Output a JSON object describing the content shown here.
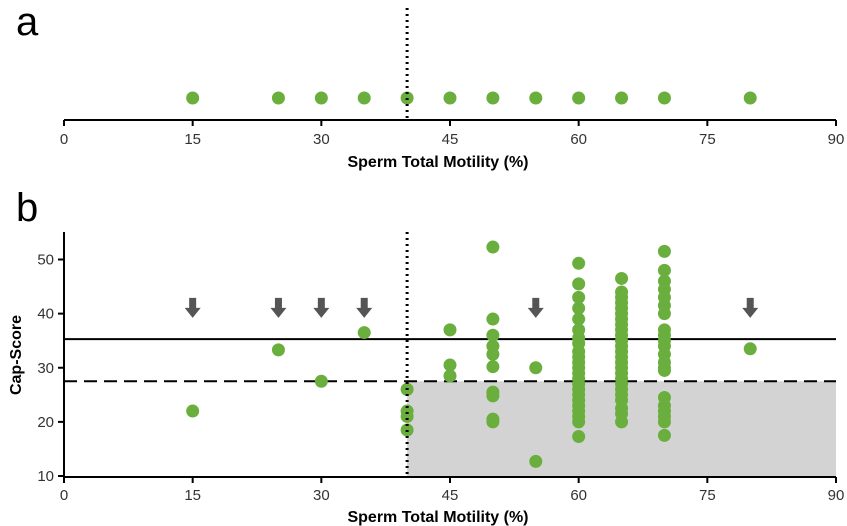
{
  "chart_data": [
    {
      "type": "scatter",
      "panel_label": "a",
      "xlabel": "Sperm Total Motility (%)",
      "ylabel": "",
      "xlim": [
        0,
        90
      ],
      "xticks": [
        0,
        15,
        30,
        45,
        60,
        75,
        90
      ],
      "threshold_x": 40,
      "point_color": "#6aaf3d",
      "points_x": [
        15,
        25,
        30,
        35,
        40,
        45,
        50,
        55,
        60,
        65,
        70,
        80
      ]
    },
    {
      "type": "scatter",
      "panel_label": "b",
      "xlabel": "Sperm Total Motility (%)",
      "ylabel": "Cap-Score",
      "xlim": [
        0,
        90
      ],
      "ylim": [
        10,
        55
      ],
      "xticks": [
        0,
        15,
        30,
        45,
        60,
        75,
        90
      ],
      "yticks": [
        10,
        20,
        30,
        40,
        50
      ],
      "point_color": "#6aaf3d",
      "arrow_color": "#555555",
      "shade_color": "#d3d3d3",
      "threshold_x": 40,
      "solid_line_y": 35.3,
      "dashed_line_y": 27.5,
      "shaded_region": {
        "x": [
          40,
          90
        ],
        "y": [
          10,
          27.5
        ]
      },
      "arrows_x": [
        15,
        25,
        30,
        35,
        55,
        80
      ],
      "arrow_y": 40.5,
      "series": [
        {
          "values": [
            [
              15,
              22.0
            ],
            [
              25,
              33.3
            ],
            [
              30,
              27.5
            ],
            [
              35,
              36.5
            ],
            [
              40,
              26.0
            ],
            [
              40,
              22.0
            ],
            [
              40,
              21.0
            ],
            [
              40,
              18.5
            ],
            [
              45,
              37.0
            ],
            [
              45,
              30.5
            ],
            [
              45,
              28.5
            ],
            [
              50,
              52.3
            ],
            [
              50,
              39.0
            ],
            [
              50,
              36.0
            ],
            [
              50,
              34.0
            ],
            [
              50,
              32.5
            ],
            [
              50,
              30.2
            ],
            [
              50,
              25.5
            ],
            [
              50,
              24.8
            ],
            [
              50,
              20.5
            ],
            [
              50,
              20.0
            ],
            [
              55,
              30.0
            ],
            [
              55,
              12.7
            ],
            [
              60,
              49.3
            ],
            [
              60,
              45.5
            ],
            [
              60,
              43.0
            ],
            [
              60,
              41.0
            ],
            [
              60,
              39.0
            ],
            [
              60,
              37.0
            ],
            [
              60,
              35.5
            ],
            [
              60,
              34.5
            ],
            [
              60,
              33.0
            ],
            [
              60,
              32.0
            ],
            [
              60,
              31.0
            ],
            [
              60,
              30.0
            ],
            [
              60,
              29.0
            ],
            [
              60,
              28.0
            ],
            [
              60,
              27.0
            ],
            [
              60,
              26.0
            ],
            [
              60,
              25.0
            ],
            [
              60,
              24.0
            ],
            [
              60,
              23.0
            ],
            [
              60,
              22.0
            ],
            [
              60,
              21.0
            ],
            [
              60,
              20.0
            ],
            [
              60,
              17.3
            ],
            [
              65,
              46.5
            ],
            [
              65,
              44.0
            ],
            [
              65,
              43.0
            ],
            [
              65,
              42.0
            ],
            [
              65,
              41.0
            ],
            [
              65,
              40.0
            ],
            [
              65,
              39.0
            ],
            [
              65,
              38.0
            ],
            [
              65,
              37.0
            ],
            [
              65,
              36.0
            ],
            [
              65,
              35.0
            ],
            [
              65,
              34.0
            ],
            [
              65,
              33.0
            ],
            [
              65,
              32.0
            ],
            [
              65,
              31.0
            ],
            [
              65,
              30.0
            ],
            [
              65,
              29.0
            ],
            [
              65,
              28.0
            ],
            [
              65,
              27.0
            ],
            [
              65,
              26.0
            ],
            [
              65,
              25.0
            ],
            [
              65,
              24.0
            ],
            [
              65,
              22.5
            ],
            [
              65,
              21.5
            ],
            [
              65,
              20.0
            ],
            [
              70,
              51.5
            ],
            [
              70,
              48.0
            ],
            [
              70,
              46.0
            ],
            [
              70,
              44.5
            ],
            [
              70,
              43.0
            ],
            [
              70,
              41.5
            ],
            [
              70,
              40.0
            ],
            [
              70,
              37.0
            ],
            [
              70,
              36.0
            ],
            [
              70,
              35.0
            ],
            [
              70,
              34.0
            ],
            [
              70,
              32.5
            ],
            [
              70,
              31.0
            ],
            [
              70,
              30.0
            ],
            [
              70,
              29.5
            ],
            [
              70,
              24.5
            ],
            [
              70,
              23.0
            ],
            [
              70,
              22.0
            ],
            [
              70,
              21.0
            ],
            [
              70,
              20.0
            ],
            [
              70,
              17.5
            ],
            [
              80,
              33.5
            ]
          ]
        }
      ]
    }
  ]
}
